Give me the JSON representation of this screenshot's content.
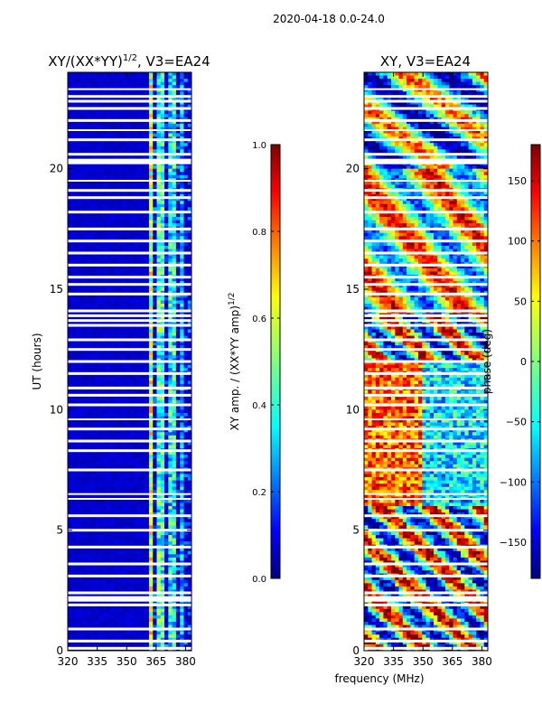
{
  "suptitle": "2020-04-18 0.0-24.0",
  "chart_data": [
    {
      "type": "heatmap",
      "title": "XY/(XX*YY)^1/2, V3=EA24",
      "title_main": "XY/(XX*YY)",
      "title_sup": "1/2",
      "title_rest": ", V3=EA24",
      "xlabel": "",
      "ylabel": "UT (hours)",
      "xlim": [
        320,
        383
      ],
      "ylim": [
        0,
        24
      ],
      "xticks": [
        320,
        335,
        350,
        365,
        380
      ],
      "yticks": [
        0,
        5,
        10,
        15,
        20
      ],
      "colorbar": {
        "label_main": "XY amp. / (XX*YY amp)",
        "label_sup": "1/2",
        "range": [
          0.0,
          1.0
        ],
        "ticks": [
          "0.0",
          "0.2",
          "0.4",
          "0.6",
          "0.8",
          "1.0"
        ],
        "tick_values": [
          0.0,
          0.2,
          0.4,
          0.6,
          0.8,
          1.0
        ],
        "colormap": "jet"
      }
    },
    {
      "type": "heatmap",
      "title": "XY, V3=EA24",
      "xlabel": "frequency (MHz)",
      "ylabel": "",
      "xlim": [
        320,
        383
      ],
      "ylim": [
        0,
        24
      ],
      "xticks": [
        320,
        335,
        350,
        365,
        380
      ],
      "yticks": [
        0,
        5,
        10,
        15,
        20
      ],
      "colorbar": {
        "label_main": "phase (deg)",
        "range": [
          -180,
          180
        ],
        "ticks": [
          "150",
          "100",
          "50",
          "0",
          "−50",
          "−100",
          "−150"
        ],
        "tick_values": [
          150,
          100,
          50,
          0,
          -50,
          -100,
          -150
        ],
        "colormap": "jet"
      }
    }
  ]
}
